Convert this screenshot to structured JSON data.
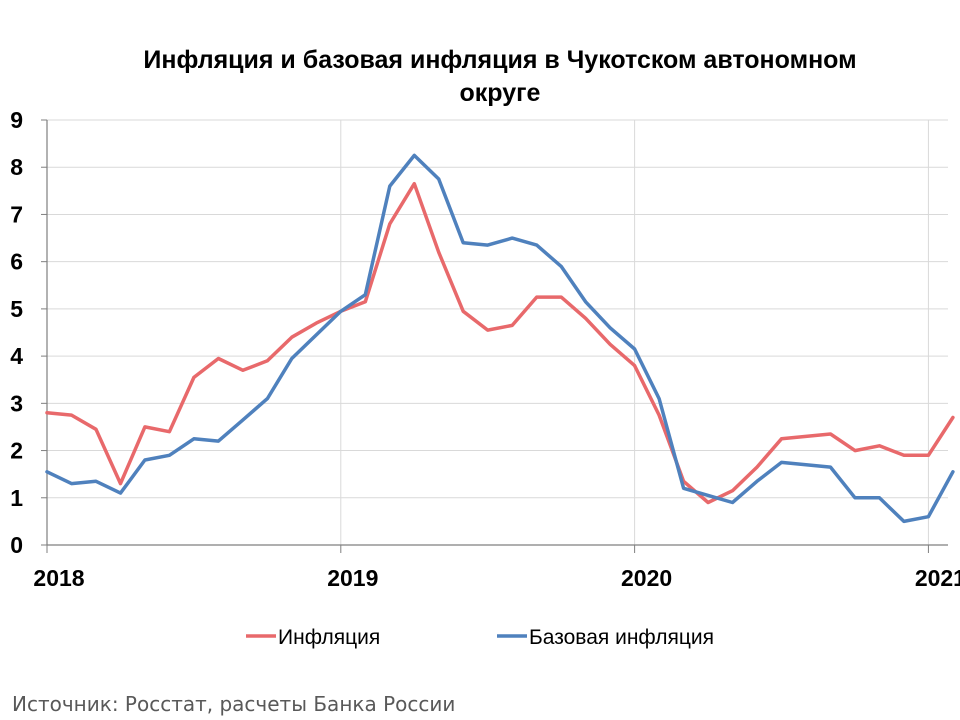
{
  "chart_data": {
    "type": "line",
    "title": "Инфляция и базовая инфляция в Чукотском автономном округе",
    "xlabel": "",
    "ylabel": "",
    "ylim": [
      0,
      9
    ],
    "y_ticks": [
      0,
      1,
      2,
      3,
      4,
      5,
      6,
      7,
      8,
      9
    ],
    "x_ticks": [
      {
        "month_index": 0,
        "label": "2018"
      },
      {
        "month_index": 12,
        "label": "2019"
      },
      {
        "month_index": 24,
        "label": "2020"
      },
      {
        "month_index": 36,
        "label": "2021"
      }
    ],
    "x_range_months": [
      0,
      37
    ],
    "grid": true,
    "legend_position": "bottom",
    "series": [
      {
        "name": "Инфляция",
        "color": "#E8696B",
        "values": [
          2.8,
          2.75,
          2.45,
          1.3,
          2.5,
          2.4,
          3.55,
          3.95,
          3.7,
          3.9,
          4.4,
          4.7,
          4.95,
          5.15,
          6.8,
          7.65,
          6.2,
          4.95,
          4.55,
          4.65,
          5.25,
          5.25,
          4.8,
          4.25,
          3.8,
          2.75,
          1.35,
          0.9,
          1.15,
          1.65,
          2.25,
          2.3,
          2.35,
          2.0,
          2.1,
          1.9,
          1.9,
          2.7
        ]
      },
      {
        "name": "Базовая инфляция",
        "color": "#4F81BD",
        "values": [
          1.55,
          1.3,
          1.35,
          1.1,
          1.8,
          1.9,
          2.25,
          2.2,
          2.65,
          3.1,
          3.95,
          4.45,
          4.95,
          5.3,
          7.6,
          8.25,
          7.75,
          6.4,
          6.35,
          6.5,
          6.35,
          5.9,
          5.15,
          4.6,
          4.15,
          3.1,
          1.2,
          1.05,
          0.9,
          1.35,
          1.75,
          1.7,
          1.65,
          1.0,
          1.0,
          0.5,
          0.6,
          1.55
        ]
      }
    ]
  },
  "source_note": "Источник: Росстат, расчеты Банка России"
}
